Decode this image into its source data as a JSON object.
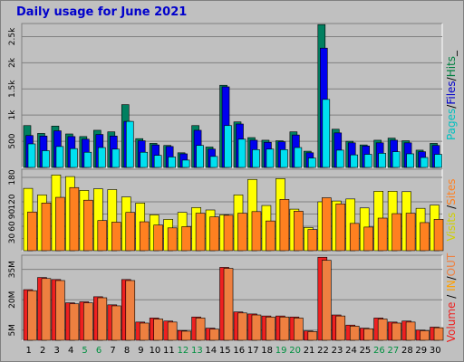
{
  "title": "Daily usage for June 2021",
  "chart_data": [
    {
      "type": "bar",
      "panel": "hits",
      "right_label_parts": [
        {
          "text": "Pages",
          "color": "#00c0c0"
        },
        {
          "text": "/",
          "color": "#000000"
        },
        {
          "text": "Files",
          "color": "#0000cc"
        },
        {
          "text": "/",
          "color": "#000000"
        },
        {
          "text": "Hits",
          "color": "#008040"
        },
        {
          "text": "_",
          "color": "#000000"
        }
      ],
      "y_ticks": [
        "500",
        "1k",
        "1.5k",
        "2k",
        "2.5k"
      ],
      "y_tick_values": [
        500,
        1000,
        1500,
        2000,
        2500
      ],
      "ylim": [
        0,
        2750
      ],
      "series": [
        {
          "name": "Hits",
          "color": "#008060",
          "values": [
            800,
            650,
            790,
            640,
            590,
            710,
            680,
            1200,
            550,
            460,
            420,
            280,
            800,
            390,
            1570,
            870,
            570,
            520,
            510,
            680,
            310,
            2730,
            730,
            500,
            430,
            520,
            560,
            510,
            330,
            460
          ]
        },
        {
          "name": "Files",
          "color": "#0000ee",
          "values": [
            610,
            600,
            700,
            590,
            540,
            630,
            600,
            880,
            510,
            430,
            400,
            260,
            710,
            350,
            1540,
            830,
            520,
            480,
            490,
            620,
            280,
            2280,
            660,
            470,
            410,
            470,
            520,
            470,
            300,
            420
          ]
        },
        {
          "name": "Pages",
          "color": "#00e0f0",
          "values": [
            450,
            320,
            400,
            360,
            290,
            380,
            350,
            880,
            290,
            230,
            200,
            140,
            420,
            210,
            800,
            540,
            340,
            350,
            340,
            380,
            180,
            1300,
            330,
            240,
            250,
            270,
            300,
            260,
            190,
            250
          ]
        }
      ]
    },
    {
      "type": "bar",
      "panel": "visits",
      "right_label_parts": [
        {
          "text": "Visits",
          "color": "#d0d000"
        },
        {
          "text": " /",
          "color": "#000000"
        },
        {
          "text": "Sites",
          "color": "#ff8020"
        }
      ],
      "y_ticks": [
        "30",
        "60",
        "90",
        "120",
        "180"
      ],
      "y_tick_values": [
        30,
        60,
        90,
        120,
        180
      ],
      "ylim": [
        0,
        200
      ],
      "series": [
        {
          "name": "Visits",
          "color": "#ffff00",
          "values": [
            153,
            137,
            186,
            182,
            148,
            152,
            150,
            132,
            117,
            88,
            77,
            94,
            106,
            100,
            88,
            137,
            175,
            111,
            177,
            102,
            57,
            120,
            122,
            127,
            105,
            146,
            146,
            145,
            104,
            112
          ]
        },
        {
          "name": "Sites",
          "color": "#ff8020",
          "values": [
            95,
            117,
            131,
            155,
            124,
            74,
            70,
            94,
            71,
            63,
            56,
            59,
            92,
            83,
            87,
            92,
            96,
            73,
            126,
            97,
            52,
            130,
            115,
            67,
            58,
            80,
            91,
            92,
            69,
            77
          ]
        }
      ]
    },
    {
      "type": "bar",
      "panel": "volume",
      "right_label_parts": [
        {
          "text": "Volume",
          "color": "#ee2020"
        },
        {
          "text": " / ",
          "color": "#000000"
        },
        {
          "text": "IN",
          "color": "#ffa000"
        },
        {
          "text": "/",
          "color": "#000000"
        },
        {
          "text": "OUT",
          "color": "#ee8040"
        }
      ],
      "y_ticks": [
        "5M",
        "20M",
        "35M"
      ],
      "y_tick_values": [
        5,
        20,
        35
      ],
      "ylim": [
        0,
        42
      ],
      "categories": [
        "1",
        "2",
        "3",
        "4",
        "5",
        "6",
        "7",
        "8",
        "9",
        "10",
        "11",
        "12",
        "13",
        "14",
        "15",
        "16",
        "17",
        "18",
        "19",
        "20",
        "21",
        "22",
        "23",
        "24",
        "25",
        "26",
        "27",
        "28",
        "29",
        "30"
      ],
      "weekend_days": [
        "5",
        "6",
        "12",
        "13",
        "19",
        "20",
        "26",
        "27"
      ],
      "weekend_color": "#009040",
      "series": [
        {
          "name": "Volume",
          "color": "#ee2020",
          "values": [
            25,
            31,
            30,
            18.5,
            19,
            21.5,
            17.5,
            30,
            9,
            11,
            9.5,
            4.8,
            11.5,
            6,
            36,
            14,
            13,
            12,
            12,
            11.5,
            4.6,
            41,
            12.5,
            7.5,
            6,
            11,
            9,
            9.5,
            5,
            6.5
          ]
        },
        {
          "name": "OUT",
          "color": "#ee8040",
          "values": [
            24.5,
            30.5,
            29.5,
            18,
            18.5,
            21,
            17,
            29.5,
            8.5,
            10.5,
            9,
            4.5,
            11,
            5.5,
            35.5,
            13.5,
            12.5,
            11.5,
            11.5,
            11,
            4.3,
            39.5,
            12,
            7,
            5.7,
            10.5,
            8.5,
            9,
            4.7,
            6.2
          ]
        }
      ]
    }
  ]
}
